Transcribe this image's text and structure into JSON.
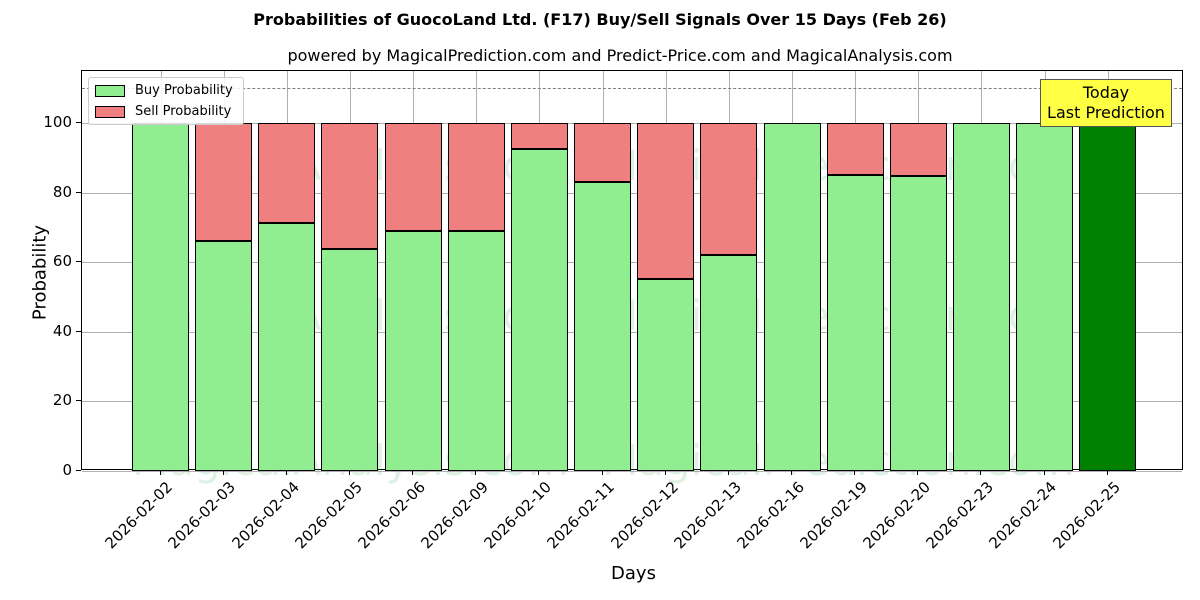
{
  "header": {
    "title": "Probabilities of GuocoLand Ltd. (F17) Buy/Sell Signals Over 15 Days (Feb 26)",
    "subtitle": "powered by MagicalPrediction.com and Predict-Price.com and MagicalAnalysis.com"
  },
  "legend": {
    "buy_label": "Buy Probability",
    "sell_label": "Sell Probability"
  },
  "annotation": {
    "line1": "Today",
    "line2": "Last Prediction"
  },
  "axes": {
    "xlabel": "Days",
    "ylabel": "Probability",
    "yticks": [
      "0",
      "20",
      "40",
      "60",
      "80",
      "100"
    ]
  },
  "watermarks": [
    "MagicalAnalysis.com",
    "MagicalPrediction.com"
  ],
  "colors": {
    "buy": "#90ee90",
    "sell": "#f08080",
    "today": "#008000",
    "annotation_bg": "#ffff44"
  },
  "chart_data": {
    "type": "bar",
    "stacked": true,
    "title": "Probabilities of GuocoLand Ltd. (F17) Buy/Sell Signals Over 15 Days (Feb 26)",
    "subtitle": "powered by MagicalPrediction.com and Predict-Price.com and MagicalAnalysis.com",
    "xlabel": "Days",
    "ylabel": "Probability",
    "ylim": [
      0,
      115
    ],
    "yticks": [
      0,
      20,
      40,
      60,
      80,
      100
    ],
    "grid": true,
    "legend_position": "upper left",
    "reference_line": {
      "y": 110,
      "style": "dashed",
      "color": "#808080"
    },
    "categories": [
      "2026-02-02",
      "2026-02-03",
      "2026-02-04",
      "2026-02-05",
      "2026-02-06",
      "2026-02-09",
      "2026-02-10",
      "2026-02-11",
      "2026-02-12",
      "2026-02-13",
      "2026-02-16",
      "2026-02-19",
      "2026-02-20",
      "2026-02-23",
      "2026-02-24",
      "2026-02-25"
    ],
    "series": [
      {
        "name": "Buy Probability",
        "values": [
          100,
          66.0,
          71.2,
          63.7,
          68.9,
          68.9,
          92.6,
          83.1,
          55.1,
          62.0,
          100,
          85.1,
          84.8,
          100,
          100,
          100
        ]
      },
      {
        "name": "Sell Probability",
        "values": [
          0,
          34.0,
          28.8,
          36.3,
          31.1,
          31.1,
          7.4,
          16.9,
          44.9,
          38.0,
          0,
          14.9,
          15.2,
          0,
          0,
          0
        ]
      }
    ],
    "annotations": [
      {
        "text": "Today\nLast Prediction",
        "x": "2026-02-25"
      }
    ]
  }
}
